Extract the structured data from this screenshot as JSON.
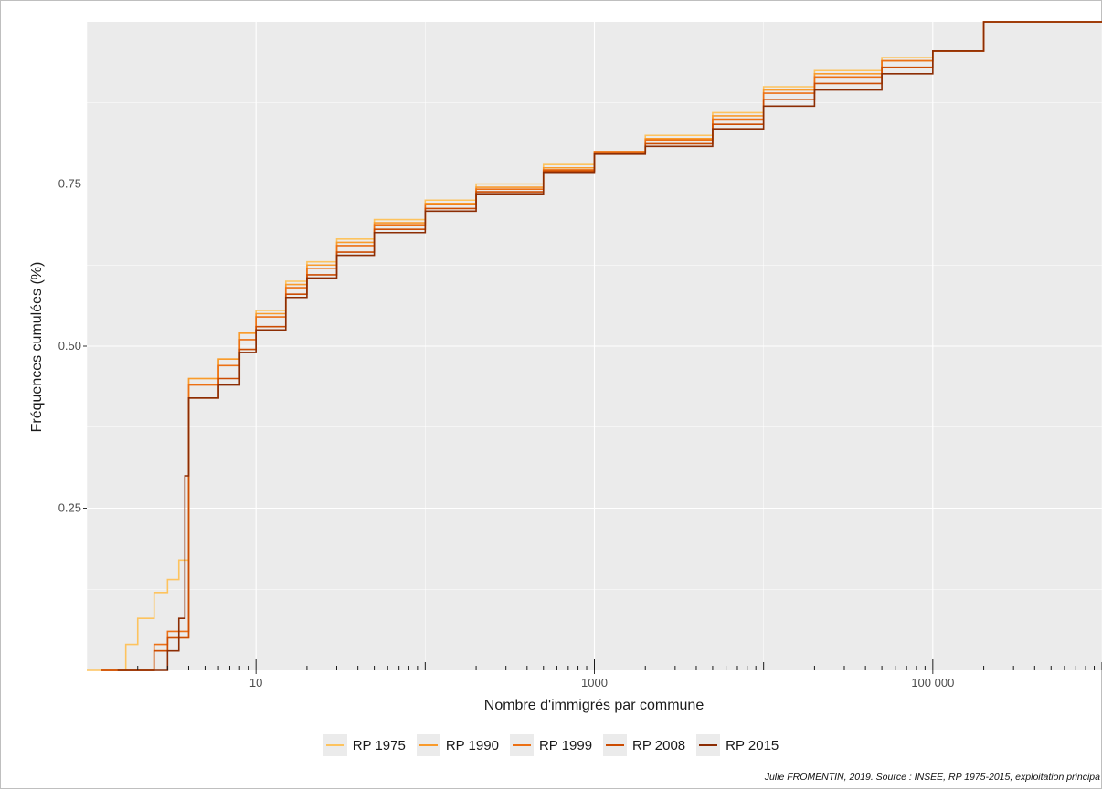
{
  "chart_data": {
    "type": "line",
    "title": "",
    "xlabel": "Nombre d'immigrés par commune",
    "ylabel": "Fréquences cumulées (%)",
    "x_scale": "log10",
    "xlim": [
      1,
      1000000
    ],
    "x_ticks": [
      {
        "value": 10,
        "label": "10"
      },
      {
        "value": 1000,
        "label": "1000"
      },
      {
        "value": 100000,
        "label": "100 000"
      }
    ],
    "y_ticks": [
      {
        "value": 0.25,
        "label": "0.25"
      },
      {
        "value": 0.5,
        "label": "0.50"
      },
      {
        "value": 0.75,
        "label": "0.75"
      }
    ],
    "grid": true,
    "legend_position": "bottom",
    "series": [
      {
        "name": "RP 1975",
        "color": "#fdc35e",
        "points": [
          [
            1.5,
            0.0
          ],
          [
            1.7,
            0.04
          ],
          [
            2,
            0.08
          ],
          [
            2.5,
            0.12
          ],
          [
            3,
            0.14
          ],
          [
            3.5,
            0.17
          ],
          [
            4,
            0.45
          ],
          [
            5,
            0.45
          ],
          [
            6,
            0.48
          ],
          [
            8,
            0.52
          ],
          [
            10,
            0.555
          ],
          [
            15,
            0.6
          ],
          [
            20,
            0.63
          ],
          [
            30,
            0.665
          ],
          [
            50,
            0.695
          ],
          [
            100,
            0.725
          ],
          [
            200,
            0.75
          ],
          [
            500,
            0.78
          ],
          [
            1000,
            0.8
          ],
          [
            2000,
            0.825
          ],
          [
            5000,
            0.86
          ],
          [
            10000,
            0.9
          ],
          [
            20000,
            0.925
          ],
          [
            50000,
            0.945
          ],
          [
            100000,
            0.955
          ],
          [
            200000,
            1.0
          ],
          [
            1000000,
            1.0
          ]
        ]
      },
      {
        "name": "RP 1990",
        "color": "#f99b2c",
        "points": [
          [
            2,
            0.0
          ],
          [
            2.5,
            0.03
          ],
          [
            3,
            0.05
          ],
          [
            3.5,
            0.05
          ],
          [
            4,
            0.45
          ],
          [
            5,
            0.45
          ],
          [
            6,
            0.48
          ],
          [
            8,
            0.52
          ],
          [
            10,
            0.55
          ],
          [
            15,
            0.595
          ],
          [
            20,
            0.625
          ],
          [
            30,
            0.66
          ],
          [
            50,
            0.69
          ],
          [
            100,
            0.72
          ],
          [
            200,
            0.745
          ],
          [
            500,
            0.775
          ],
          [
            1000,
            0.8
          ],
          [
            2000,
            0.82
          ],
          [
            5000,
            0.855
          ],
          [
            10000,
            0.895
          ],
          [
            20000,
            0.92
          ],
          [
            50000,
            0.94
          ],
          [
            100000,
            0.955
          ],
          [
            200000,
            1.0
          ],
          [
            1000000,
            1.0
          ]
        ]
      },
      {
        "name": "RP 1999",
        "color": "#ec7014",
        "points": [
          [
            2,
            0.0
          ],
          [
            2.5,
            0.04
          ],
          [
            3,
            0.06
          ],
          [
            3.5,
            0.06
          ],
          [
            4,
            0.44
          ],
          [
            5,
            0.44
          ],
          [
            6,
            0.47
          ],
          [
            8,
            0.51
          ],
          [
            10,
            0.545
          ],
          [
            15,
            0.59
          ],
          [
            20,
            0.62
          ],
          [
            30,
            0.655
          ],
          [
            50,
            0.687
          ],
          [
            100,
            0.718
          ],
          [
            200,
            0.742
          ],
          [
            500,
            0.772
          ],
          [
            1000,
            0.8
          ],
          [
            2000,
            0.818
          ],
          [
            5000,
            0.85
          ],
          [
            10000,
            0.89
          ],
          [
            20000,
            0.915
          ],
          [
            50000,
            0.94
          ],
          [
            100000,
            0.955
          ],
          [
            200000,
            1.0
          ],
          [
            1000000,
            1.0
          ]
        ]
      },
      {
        "name": "RP 2008",
        "color": "#cc4c02",
        "points": [
          [
            2,
            0.0
          ],
          [
            2.5,
            0.03
          ],
          [
            3,
            0.05
          ],
          [
            3.5,
            0.05
          ],
          [
            4,
            0.42
          ],
          [
            5,
            0.42
          ],
          [
            6,
            0.45
          ],
          [
            8,
            0.495
          ],
          [
            10,
            0.53
          ],
          [
            15,
            0.58
          ],
          [
            20,
            0.61
          ],
          [
            30,
            0.645
          ],
          [
            50,
            0.68
          ],
          [
            100,
            0.712
          ],
          [
            200,
            0.738
          ],
          [
            500,
            0.77
          ],
          [
            1000,
            0.798
          ],
          [
            2000,
            0.812
          ],
          [
            5000,
            0.842
          ],
          [
            10000,
            0.88
          ],
          [
            20000,
            0.905
          ],
          [
            50000,
            0.93
          ],
          [
            100000,
            0.955
          ],
          [
            200000,
            1.0
          ],
          [
            1000000,
            1.0
          ]
        ]
      },
      {
        "name": "RP 2015",
        "color": "#8c2d04",
        "points": [
          [
            2.5,
            0.0
          ],
          [
            3,
            0.03
          ],
          [
            3.5,
            0.08
          ],
          [
            3.8,
            0.3
          ],
          [
            4,
            0.42
          ],
          [
            5,
            0.42
          ],
          [
            6,
            0.44
          ],
          [
            8,
            0.49
          ],
          [
            10,
            0.525
          ],
          [
            15,
            0.575
          ],
          [
            20,
            0.605
          ],
          [
            30,
            0.64
          ],
          [
            50,
            0.675
          ],
          [
            100,
            0.708
          ],
          [
            200,
            0.735
          ],
          [
            500,
            0.768
          ],
          [
            1000,
            0.796
          ],
          [
            2000,
            0.808
          ],
          [
            5000,
            0.835
          ],
          [
            10000,
            0.87
          ],
          [
            20000,
            0.895
          ],
          [
            50000,
            0.92
          ],
          [
            100000,
            0.955
          ],
          [
            200000,
            1.0
          ],
          [
            1000000,
            1.0
          ]
        ]
      }
    ]
  },
  "caption": "Julie FROMENTIN, 2019. Source : INSEE, RP 1975-2015, exploitation principa"
}
